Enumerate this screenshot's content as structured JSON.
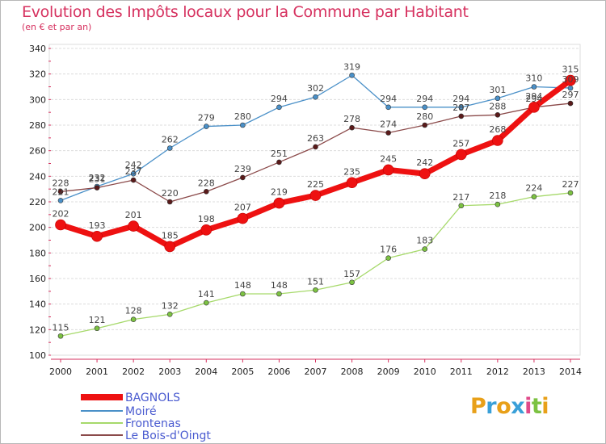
{
  "title": "Evolution des Impôts locaux pour la Commune par Habitant",
  "subtitle": "(en € et par an)",
  "logo": {
    "text": "Proxiti",
    "letters": [
      {
        "ch": "P",
        "color": "#e8a019"
      },
      {
        "ch": "r",
        "color": "#3aa0d8"
      },
      {
        "ch": "o",
        "color": "#e8a019"
      },
      {
        "ch": "x",
        "color": "#3aa0d8"
      },
      {
        "ch": "i",
        "color": "#e04a8a"
      },
      {
        "ch": "t",
        "color": "#7cc242"
      },
      {
        "ch": "i",
        "color": "#e8a019"
      }
    ]
  },
  "chart_data": {
    "type": "line",
    "title": "Evolution des Impôts locaux pour la Commune par Habitant",
    "ylabel": "(en € et par an)",
    "x": [
      2000,
      2001,
      2002,
      2003,
      2004,
      2005,
      2006,
      2007,
      2008,
      2009,
      2010,
      2011,
      2012,
      2013,
      2014
    ],
    "yticks": [
      100,
      120,
      140,
      160,
      180,
      200,
      220,
      240,
      260,
      280,
      300,
      320,
      340
    ],
    "ylim": [
      100,
      340
    ],
    "series": [
      {
        "name": "Moiré",
        "color": "#4a90c8",
        "dot": "#4a90c8",
        "values": [
          221,
          232,
          242,
          262,
          279,
          280,
          294,
          302,
          319,
          294,
          294,
          294,
          301,
          310,
          309
        ],
        "labels": [
          "221",
          "232",
          "242",
          "262",
          "279",
          "280",
          "294",
          "302",
          "319",
          "294",
          "294",
          "294",
          "301",
          "310",
          "309"
        ]
      },
      {
        "name": "Frontenas",
        "color": "#a6d96a",
        "dot": "#7cc242",
        "values": [
          115,
          121,
          128,
          132,
          141,
          148,
          148,
          151,
          157,
          176,
          183,
          217,
          218,
          224,
          227
        ],
        "labels": [
          "115",
          "121",
          "128",
          "132",
          "141",
          "148",
          "148",
          "151",
          "157",
          "176",
          "183",
          "217",
          "218",
          "224",
          "227"
        ]
      },
      {
        "name": "Le Bois-d'Oingt",
        "color": "#8b4a4a",
        "dot": "#5a1a1a",
        "values": [
          228,
          231,
          237,
          220,
          228,
          239,
          251,
          263,
          278,
          274,
          280,
          287,
          288,
          294,
          297
        ],
        "labels": [
          "228",
          "231",
          "237",
          "220",
          "228",
          "239",
          "251",
          "263",
          "278",
          "274",
          "280",
          "287",
          "288",
          "294",
          "297"
        ]
      },
      {
        "name": "BAGNOLS",
        "color": "#ee1111",
        "dot": "#ee1111",
        "values": [
          202,
          193,
          201,
          185,
          198,
          207,
          219,
          225,
          235,
          245,
          242,
          257,
          268,
          294,
          315
        ],
        "labels": [
          "202",
          "193",
          "201",
          "185",
          "198",
          "207",
          "219",
          "225",
          "235",
          "245",
          "242",
          "257",
          "268",
          "294",
          "315"
        ]
      }
    ],
    "legend": [
      "BAGNOLS",
      "Moiré",
      "Frontenas",
      "Le Bois-d'Oingt"
    ],
    "grid": true
  }
}
